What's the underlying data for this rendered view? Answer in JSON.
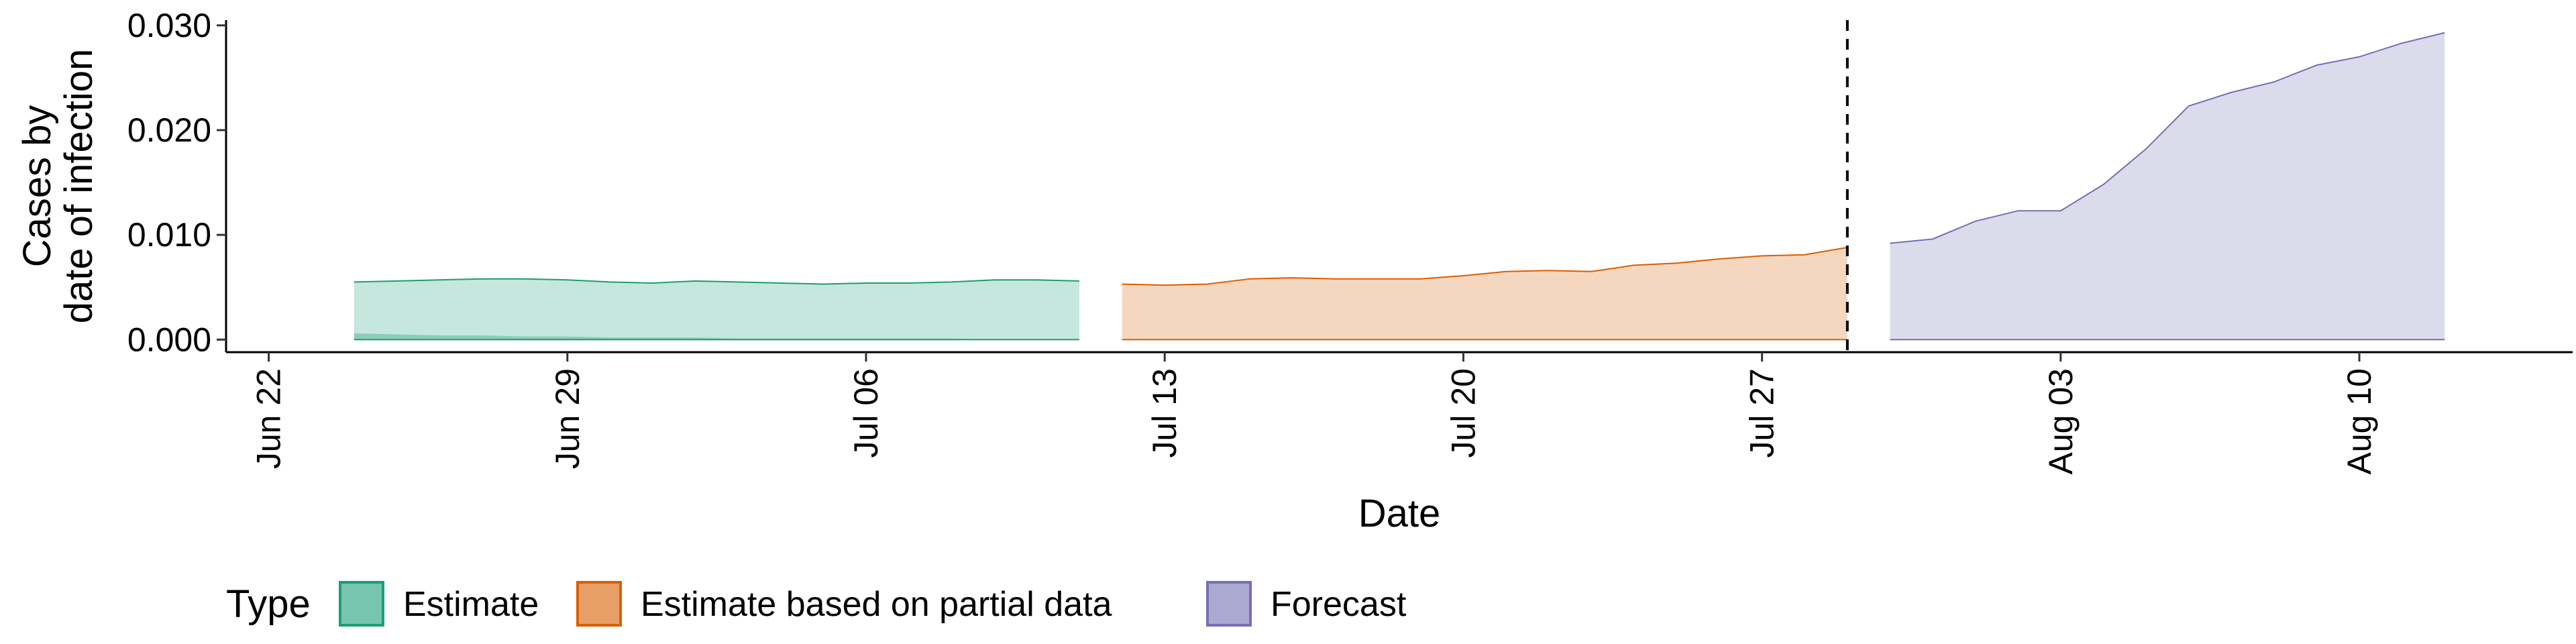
{
  "chart_data": {
    "type": "area",
    "xlabel": "Date",
    "ylabel": [
      "Cases by",
      "date of infection"
    ],
    "xlim": [
      "2020-06-21",
      "2020-08-15"
    ],
    "ylim": [
      -0.0012,
      0.0305
    ],
    "y_ticks": [
      0.0,
      0.01,
      0.02,
      0.03
    ],
    "y_tick_labels": [
      "0.000",
      "0.010",
      "0.020",
      "0.030"
    ],
    "x_ticks": [
      "2020-06-22",
      "2020-06-29",
      "2020-07-06",
      "2020-07-13",
      "2020-07-20",
      "2020-07-27",
      "2020-08-03",
      "2020-08-10"
    ],
    "x_tick_labels": [
      "Jun 22",
      "Jun 29",
      "Jul 06",
      "Jul 13",
      "Jul 20",
      "Jul 27",
      "Aug 03",
      "Aug 10"
    ],
    "grid": false,
    "vline": "2020-07-29",
    "legend": {
      "title": "Type",
      "position": "bottom",
      "entries": [
        {
          "label": "Estimate",
          "color": "#1B9E77"
        },
        {
          "label": "Estimate based on partial data",
          "color": "#D95F02"
        },
        {
          "label": "Forecast",
          "color": "#7570B3"
        }
      ]
    },
    "series": [
      {
        "name": "Estimate",
        "color": "#1B9E77",
        "x": [
          "2020-06-24",
          "2020-06-25",
          "2020-06-26",
          "2020-06-27",
          "2020-06-28",
          "2020-06-29",
          "2020-06-30",
          "2020-07-01",
          "2020-07-02",
          "2020-07-03",
          "2020-07-04",
          "2020-07-05",
          "2020-07-06",
          "2020-07-07",
          "2020-07-08",
          "2020-07-09",
          "2020-07-10",
          "2020-07-11"
        ],
        "upper": [
          0.0055,
          0.0056,
          0.0057,
          0.0058,
          0.0058,
          0.0057,
          0.0055,
          0.0054,
          0.0056,
          0.0055,
          0.0054,
          0.0053,
          0.0054,
          0.0054,
          0.0055,
          0.0057,
          0.0057,
          0.0056
        ],
        "lower": [
          0.0,
          0.0,
          0.0,
          0.0,
          0.0,
          0.0,
          0.0,
          0.0,
          0.0,
          0.0,
          0.0,
          0.0,
          0.0,
          0.0,
          0.0,
          0.0,
          0.0,
          0.0
        ],
        "inner_upper": [
          0.0006,
          0.0005,
          0.0004,
          0.0004,
          0.0003,
          0.0003,
          0.0002,
          0.0002,
          0.0002,
          0.0001,
          0.0001,
          0.0001,
          0.0001,
          0.0001,
          0.0001,
          0.0,
          0.0,
          0.0
        ]
      },
      {
        "name": "Estimate based on partial data",
        "color": "#D95F02",
        "x": [
          "2020-07-12",
          "2020-07-13",
          "2020-07-14",
          "2020-07-15",
          "2020-07-16",
          "2020-07-17",
          "2020-07-18",
          "2020-07-19",
          "2020-07-20",
          "2020-07-21",
          "2020-07-22",
          "2020-07-23",
          "2020-07-24",
          "2020-07-25",
          "2020-07-26",
          "2020-07-27",
          "2020-07-28",
          "2020-07-29"
        ],
        "upper": [
          0.0053,
          0.0052,
          0.0053,
          0.0058,
          0.0059,
          0.0058,
          0.0058,
          0.0058,
          0.0061,
          0.0065,
          0.0066,
          0.0065,
          0.0071,
          0.0073,
          0.0077,
          0.008,
          0.0081,
          0.0088
        ],
        "lower": [
          0.0,
          0.0,
          0.0,
          0.0,
          0.0,
          0.0,
          0.0,
          0.0,
          0.0,
          0.0,
          0.0,
          0.0,
          0.0,
          0.0,
          0.0,
          0.0,
          0.0,
          0.0
        ]
      },
      {
        "name": "Forecast",
        "color": "#7570B3",
        "x": [
          "2020-07-30",
          "2020-07-31",
          "2020-08-01",
          "2020-08-02",
          "2020-08-03",
          "2020-08-04",
          "2020-08-05",
          "2020-08-06",
          "2020-08-07",
          "2020-08-08",
          "2020-08-09",
          "2020-08-10",
          "2020-08-11",
          "2020-08-12"
        ],
        "upper": [
          0.0092,
          0.0096,
          0.0113,
          0.0123,
          0.0123,
          0.0148,
          0.0182,
          0.0223,
          0.0236,
          0.0246,
          0.0262,
          0.027,
          0.0283,
          0.0293
        ],
        "lower": [
          0.0,
          0.0,
          0.0,
          0.0,
          0.0,
          0.0,
          0.0,
          0.0,
          0.0,
          0.0,
          0.0,
          0.0,
          0.0,
          0.0
        ]
      }
    ]
  }
}
